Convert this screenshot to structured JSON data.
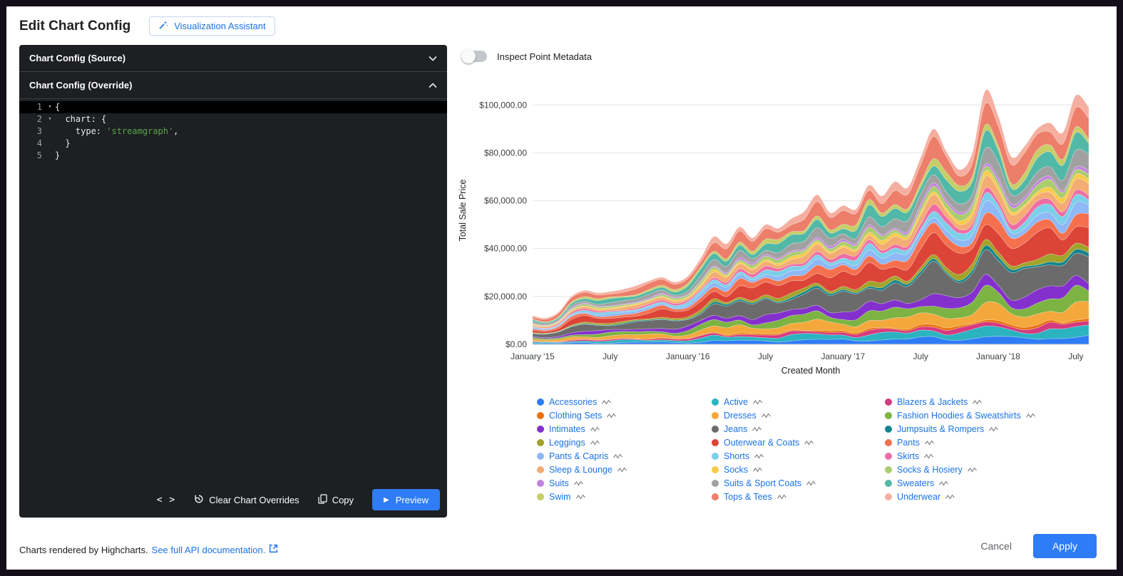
{
  "header": {
    "title": "Edit Chart Config",
    "assistant_label": "Visualization Assistant"
  },
  "config_panel": {
    "source_header": "Chart Config (Source)",
    "override_header": "Chart Config (Override)",
    "code_lines": [
      {
        "n": "1",
        "fold": true,
        "active": true,
        "segs": [
          {
            "t": "{",
            "c": "p"
          }
        ]
      },
      {
        "n": "2",
        "fold": true,
        "segs": [
          {
            "t": "  chart: {",
            "c": "p"
          }
        ]
      },
      {
        "n": "3",
        "segs": [
          {
            "t": "    type: ",
            "c": "p"
          },
          {
            "t": "'streamgraph'",
            "c": "s"
          },
          {
            "t": ",",
            "c": "p"
          }
        ]
      },
      {
        "n": "4",
        "segs": [
          {
            "t": "  }",
            "c": "p"
          }
        ]
      },
      {
        "n": "5",
        "segs": [
          {
            "t": "}",
            "c": "p"
          }
        ]
      }
    ],
    "toolbar": {
      "clear_label": "Clear Chart Overrides",
      "copy_label": "Copy",
      "preview_label": "Preview"
    }
  },
  "inspect": {
    "label": "Inspect Point Metadata",
    "enabled": false
  },
  "icons": {
    "code": "< >",
    "preview": "▶",
    "fold": "▾"
  },
  "chart_data": {
    "type": "area",
    "stacking": "normal",
    "values_estimated": true,
    "xlabel": "Created Month",
    "ylabel": "Total Sale Price",
    "points": 44,
    "ylim": [
      0,
      112000
    ],
    "x_ticks": [
      {
        "label": "January '15",
        "i": 0
      },
      {
        "label": "July",
        "i": 6
      },
      {
        "label": "January '16",
        "i": 12
      },
      {
        "label": "July",
        "i": 18
      },
      {
        "label": "January '17",
        "i": 24
      },
      {
        "label": "July",
        "i": 30
      },
      {
        "label": "January '18",
        "i": 36
      },
      {
        "label": "July",
        "i": 42
      }
    ],
    "y_ticks": [
      {
        "label": "$0.00",
        "v": 0
      },
      {
        "label": "$20,000.00",
        "v": 20000
      },
      {
        "label": "$40,000.00",
        "v": 40000
      },
      {
        "label": "$60,000.00",
        "v": 60000
      },
      {
        "label": "$80,000.00",
        "v": 80000
      },
      {
        "label": "$100,000.00",
        "v": 100000
      }
    ],
    "total": [
      12000,
      11000,
      13500,
      20000,
      22500,
      21500,
      22000,
      23000,
      24500,
      26500,
      28000,
      26000,
      28500,
      36000,
      45000,
      42000,
      49000,
      44500,
      50000,
      48500,
      52500,
      55500,
      62500,
      55000,
      58000,
      56500,
      66500,
      62000,
      68000,
      65500,
      78000,
      90000,
      80500,
      73000,
      80000,
      106000,
      95500,
      78500,
      82500,
      90000,
      92500,
      88500,
      104000,
      99000
    ],
    "series": [
      {
        "name": "Accessories",
        "color": "#2E7CF6",
        "share": 0.03
      },
      {
        "name": "Active",
        "color": "#2BB3C0",
        "share": 0.036
      },
      {
        "name": "Blazers & Jackets",
        "color": "#D53A80",
        "share": 0.02
      },
      {
        "name": "Clothing Sets",
        "color": "#E8710A",
        "share": 0.01
      },
      {
        "name": "Dresses",
        "color": "#F4A83C",
        "share": 0.055
      },
      {
        "name": "Fashion Hoodies & Sweatshirts",
        "color": "#7CB342",
        "share": 0.05
      },
      {
        "name": "Intimates",
        "color": "#8430CE",
        "share": 0.048
      },
      {
        "name": "Jeans",
        "color": "#6B6B6B",
        "share": 0.11
      },
      {
        "name": "Jumpsuits & Rompers",
        "color": "#12858C",
        "share": 0.014
      },
      {
        "name": "Leggings",
        "color": "#A2A32A",
        "share": 0.024
      },
      {
        "name": "Outerwear & Coats",
        "color": "#DC4437",
        "share": 0.09
      },
      {
        "name": "Pants",
        "color": "#F4704E",
        "share": 0.045
      },
      {
        "name": "Pants & Capris",
        "color": "#8FB8F6",
        "share": 0.034
      },
      {
        "name": "Shorts",
        "color": "#7CCFE9",
        "share": 0.03
      },
      {
        "name": "Skirts",
        "color": "#EE6DA4",
        "share": 0.024
      },
      {
        "name": "Sleep & Lounge",
        "color": "#F3AC73",
        "share": 0.04
      },
      {
        "name": "Socks",
        "color": "#F7CB4D",
        "share": 0.018
      },
      {
        "name": "Socks & Hosiery",
        "color": "#AACD6E",
        "share": 0.024
      },
      {
        "name": "Suits",
        "color": "#C084DD",
        "share": 0.014
      },
      {
        "name": "Suits & Sport Coats",
        "color": "#A1A1A1",
        "share": 0.05
      },
      {
        "name": "Sweaters",
        "color": "#52B8A8",
        "share": 0.055
      },
      {
        "name": "Swim",
        "color": "#C6CE67",
        "share": 0.028
      },
      {
        "name": "Tops & Tees",
        "color": "#EC7E6A",
        "share": 0.08
      },
      {
        "name": "Underwear",
        "color": "#F5AFA0",
        "share": 0.04
      }
    ]
  },
  "footer": {
    "credit": "Charts rendered by Highcharts.",
    "link_label": "See full API documentation.",
    "cancel_label": "Cancel",
    "apply_label": "Apply"
  },
  "colors": {
    "accent_blue": "#2E7CF6",
    "link_blue": "#1A73E8",
    "panel_bg": "#1D1F22",
    "string_green": "#57A64A"
  }
}
